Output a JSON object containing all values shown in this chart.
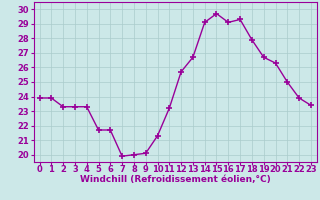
{
  "x": [
    0,
    1,
    2,
    3,
    4,
    5,
    6,
    7,
    8,
    9,
    10,
    11,
    12,
    13,
    14,
    15,
    16,
    17,
    18,
    19,
    20,
    21,
    22,
    23
  ],
  "y": [
    23.9,
    23.9,
    23.3,
    23.3,
    23.3,
    21.7,
    21.7,
    19.9,
    20.0,
    20.1,
    21.3,
    23.2,
    25.7,
    26.7,
    29.1,
    29.7,
    29.1,
    29.3,
    27.9,
    26.7,
    26.3,
    25.0,
    23.9,
    23.4
  ],
  "line_color": "#990099",
  "marker": "+",
  "marker_size": 5,
  "line_width": 1.0,
  "bg_color": "#cce8e8",
  "grid_color": "#aacccc",
  "xlabel": "Windchill (Refroidissement éolien,°C)",
  "xlim": [
    -0.5,
    23.5
  ],
  "ylim": [
    19.5,
    30.5
  ],
  "yticks": [
    20,
    21,
    22,
    23,
    24,
    25,
    26,
    27,
    28,
    29,
    30
  ],
  "xticks": [
    0,
    1,
    2,
    3,
    4,
    5,
    6,
    7,
    8,
    9,
    10,
    11,
    12,
    13,
    14,
    15,
    16,
    17,
    18,
    19,
    20,
    21,
    22,
    23
  ],
  "tick_color": "#990099",
  "label_color": "#990099",
  "label_fontsize": 6.5,
  "tick_fontsize": 6.0,
  "spine_color": "#990099",
  "marker_color": "#990099"
}
